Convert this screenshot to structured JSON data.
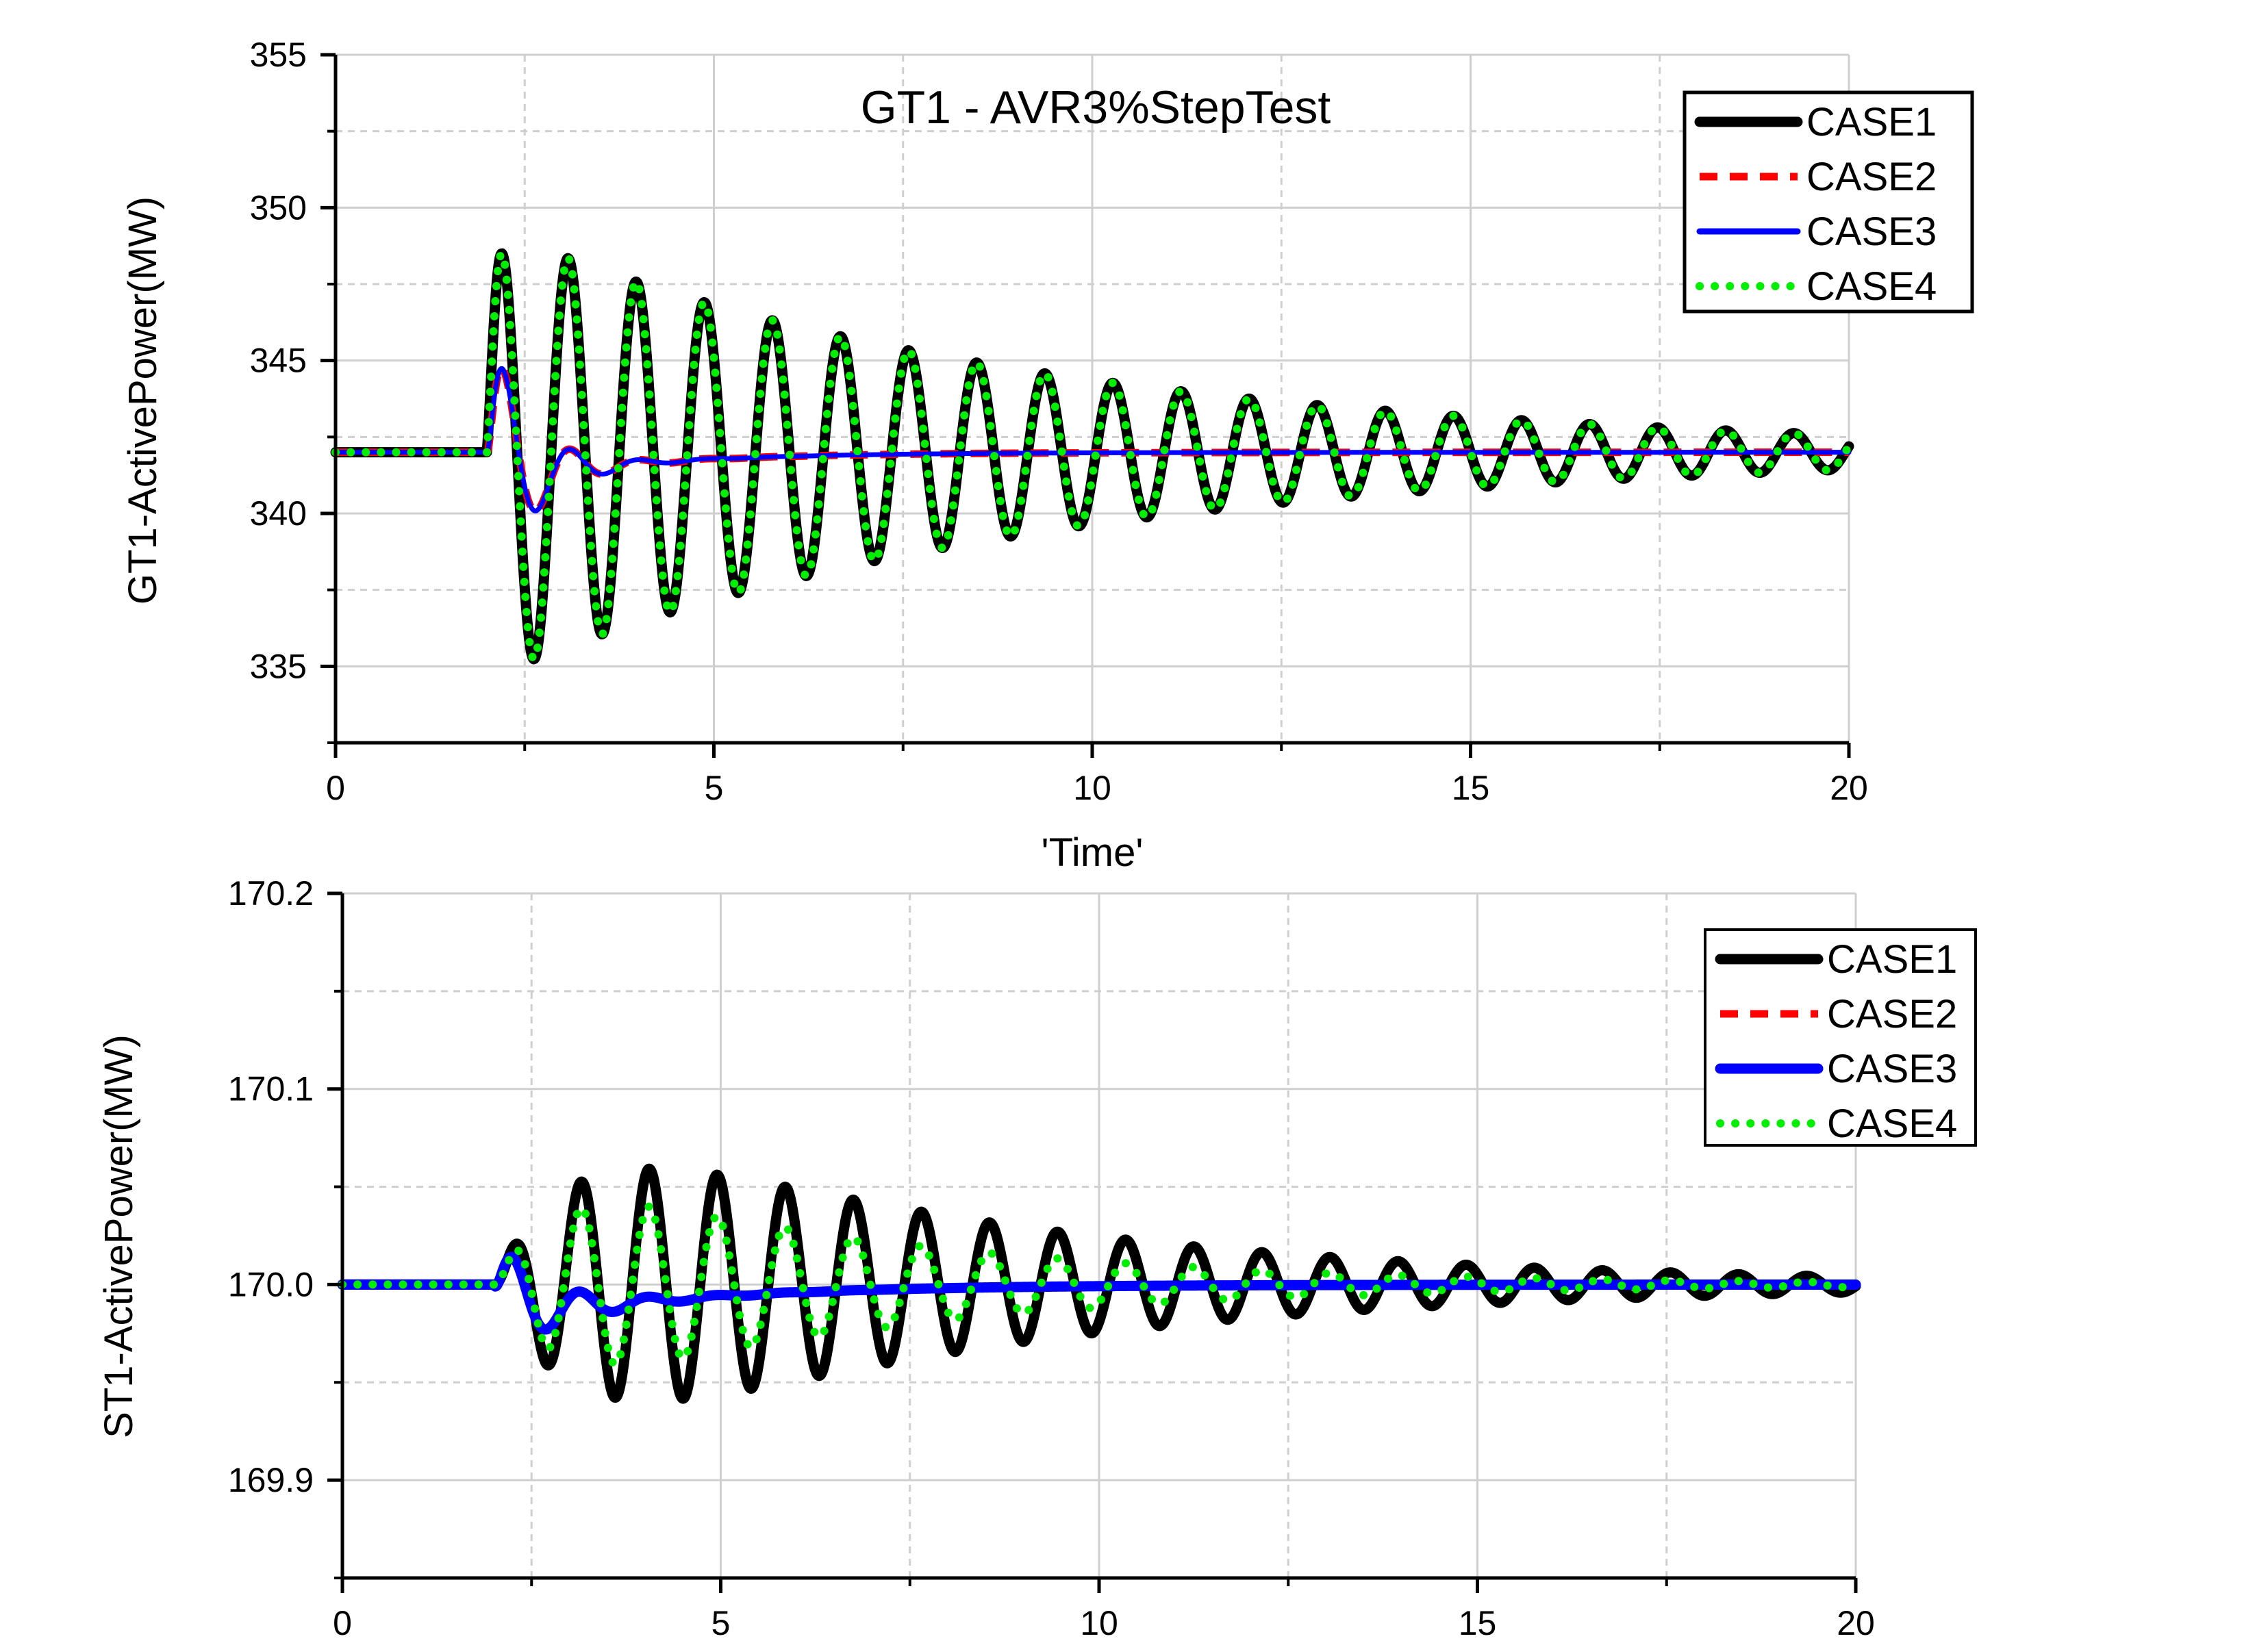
{
  "chart_data": [
    {
      "type": "line",
      "title": "GT1 - AVR3%StepTest",
      "xlabel": "'Time'",
      "ylabel": "GT1-ActivePower(MW)",
      "xlim": [
        0,
        20
      ],
      "ylim": [
        332.5,
        355
      ],
      "xticks": [
        0,
        5,
        10,
        15,
        20
      ],
      "yticks": [
        335,
        340,
        345,
        350,
        355
      ],
      "xtick_labels": [
        "0",
        "5",
        "10",
        "15",
        "20"
      ],
      "ytick_labels": [
        "335",
        "340",
        "345",
        "350",
        "355"
      ],
      "grid": true,
      "legend_position": "top-right",
      "series": [
        {
          "name": "CASE1",
          "color": "#000000",
          "style": "solid-thick",
          "model": {
            "base": 342.0,
            "t0": 2.0,
            "kind": "osc",
            "A": 7.4,
            "period": 0.9,
            "tau": 7.0,
            "phase": 0.35
          }
        },
        {
          "name": "CASE2",
          "color": "#ff0000",
          "style": "dashed",
          "model": {
            "base": 342.0,
            "t0": 2.0,
            "kind": "damped",
            "A": 4.6,
            "period": 0.9,
            "tau": 0.55,
            "phase": 0.0,
            "dip": 1.0,
            "tau2": 2.0
          }
        },
        {
          "name": "CASE3",
          "color": "#0000ff",
          "style": "solid",
          "model": {
            "base": 342.0,
            "t0": 2.0,
            "kind": "damped",
            "A": 4.6,
            "period": 0.9,
            "tau": 0.55,
            "phase": 0.0,
            "dip": 1.0,
            "tau2": 2.0
          }
        },
        {
          "name": "CASE4",
          "color": "#00ee00",
          "style": "dotted",
          "model": {
            "base": 342.0,
            "t0": 2.0,
            "kind": "osc",
            "A": 7.4,
            "period": 0.9,
            "tau": 7.0,
            "phase": 0.35
          }
        }
      ]
    },
    {
      "type": "line",
      "title": "",
      "xlabel": "",
      "ylabel": "ST1-ActivePower(MW)",
      "xlim": [
        0,
        20
      ],
      "ylim": [
        169.85,
        170.2
      ],
      "xticks": [
        0,
        5,
        10,
        15,
        20
      ],
      "yticks": [
        169.9,
        170.0,
        170.1,
        170.2
      ],
      "xtick_labels": [
        "0",
        "5",
        "10",
        "15",
        "20"
      ],
      "ytick_labels": [
        "169.9",
        "170.0",
        "170.1",
        "170.2"
      ],
      "grid": true,
      "legend_position": "top-right",
      "series": [
        {
          "name": "CASE1",
          "color": "#000000",
          "style": "solid-thick",
          "model": {
            "base": 170.0,
            "t0": 2.0,
            "kind": "osc2",
            "A": 0.105,
            "period": 0.9,
            "tau": 5.5,
            "ramp": 1.2,
            "phase": -0.2
          }
        },
        {
          "name": "CASE2",
          "color": "#ff0000",
          "style": "dashed",
          "model": {
            "base": 170.0,
            "t0": 2.0,
            "kind": "damped2",
            "A": 0.03,
            "period": 0.9,
            "tau": 0.8,
            "phase": -0.2,
            "dip": 0.02,
            "tau2": 2.5
          }
        },
        {
          "name": "CASE3",
          "color": "#0000ff",
          "style": "solid-thick",
          "model": {
            "base": 170.0,
            "t0": 2.0,
            "kind": "damped2",
            "A": 0.03,
            "period": 0.9,
            "tau": 0.8,
            "phase": -0.2,
            "dip": 0.02,
            "tau2": 2.5
          }
        },
        {
          "name": "CASE4",
          "color": "#00ee00",
          "style": "dotted",
          "model": {
            "base": 170.0,
            "t0": 2.0,
            "kind": "osc2",
            "A": 0.07,
            "period": 0.9,
            "tau": 4.5,
            "ramp": 0.9,
            "phase": -0.2
          }
        }
      ]
    }
  ]
}
